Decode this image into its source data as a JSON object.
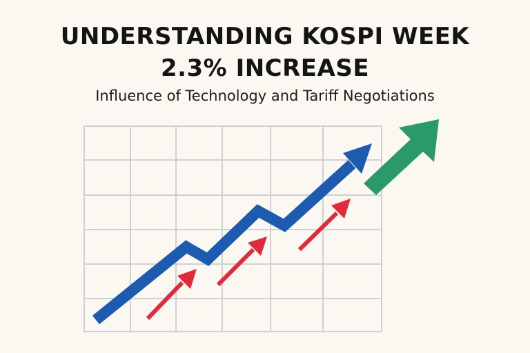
{
  "title": {
    "line1": "UNDERSTANDING KOSPI WEEK",
    "line2": "2.3% INCREASE"
  },
  "subtitle": "Influence of Technology and Tariff Negotiations",
  "colors": {
    "background": "#fbf8f1",
    "grid": "#cfd0d3",
    "trend_arrow": "#1c5bb0",
    "small_arrows": "#e12b3c",
    "growth_arrow": "#2a9a6c"
  },
  "icons": {
    "grid": "line-chart-grid",
    "trend": "blue-trend-arrow",
    "small": "red-up-arrow",
    "growth": "green-up-arrow"
  }
}
